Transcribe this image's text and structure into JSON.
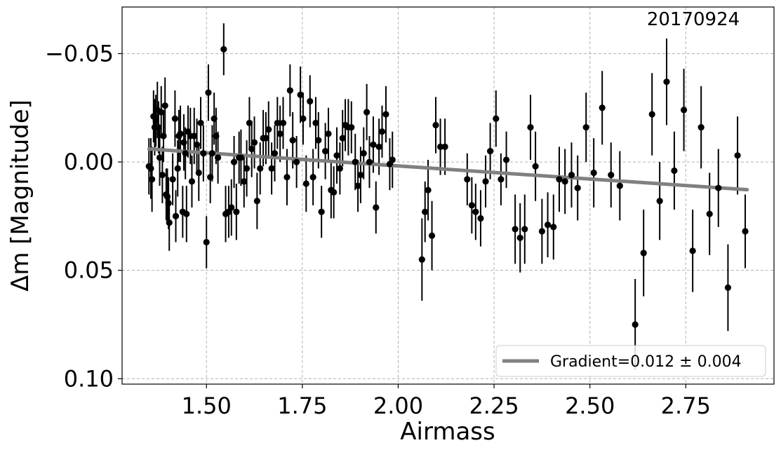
{
  "chart_data": {
    "type": "scatter",
    "annotation": "20170924",
    "xlabel": "Airmass",
    "ylabel": "Δm [Magnitude]",
    "xlim": [
      1.28,
      2.98
    ],
    "ylim": [
      0.1025,
      -0.0715
    ],
    "y_inverted": true,
    "grid": true,
    "legend_placement": "lower-right",
    "xticks": [
      {
        "value": 1.5,
        "label": "1.50"
      },
      {
        "value": 1.75,
        "label": "1.75"
      },
      {
        "value": 2.0,
        "label": "2.00"
      },
      {
        "value": 2.25,
        "label": "2.25"
      },
      {
        "value": 2.5,
        "label": "2.50"
      },
      {
        "value": 2.75,
        "label": "2.75"
      }
    ],
    "yticks": [
      {
        "value": -0.05,
        "label": "−0.05"
      },
      {
        "value": 0.0,
        "label": "0.00"
      },
      {
        "value": 0.05,
        "label": "0.05"
      },
      {
        "value": 0.1,
        "label": "0.10"
      }
    ],
    "colors": {
      "points": "#000000",
      "fit": "#808080",
      "grid": "#b0b0b0"
    },
    "fit": {
      "label": "Gradient=0.012 ± 0.004",
      "x": [
        1.35,
        2.91
      ],
      "y": [
        -0.006,
        0.0128
      ]
    },
    "points": [
      {
        "x": 1.35,
        "y": 0.002,
        "e": 0.013
      },
      {
        "x": 1.355,
        "y": 0.003,
        "e": 0.014
      },
      {
        "x": 1.358,
        "y": 0.008,
        "e": 0.015
      },
      {
        "x": 1.362,
        "y": -0.021,
        "e": 0.012
      },
      {
        "x": 1.365,
        "y": -0.016,
        "e": 0.013
      },
      {
        "x": 1.368,
        "y": -0.019,
        "e": 0.012
      },
      {
        "x": 1.372,
        "y": -0.024,
        "e": 0.013
      },
      {
        "x": 1.375,
        "y": -0.016,
        "e": 0.012
      },
      {
        "x": 1.378,
        "y": -0.002,
        "e": 0.013
      },
      {
        "x": 1.382,
        "y": -0.023,
        "e": 0.012
      },
      {
        "x": 1.385,
        "y": 0.006,
        "e": 0.013
      },
      {
        "x": 1.388,
        "y": -0.012,
        "e": 0.012
      },
      {
        "x": 1.392,
        "y": -0.026,
        "e": 0.013
      },
      {
        "x": 1.395,
        "y": 0.015,
        "e": 0.012
      },
      {
        "x": 1.398,
        "y": 0.016,
        "e": 0.013
      },
      {
        "x": 1.401,
        "y": 0.019,
        "e": 0.012
      },
      {
        "x": 1.403,
        "y": 0.028,
        "e": 0.013
      },
      {
        "x": 1.412,
        "y": 0.008,
        "e": 0.012
      },
      {
        "x": 1.418,
        "y": -0.02,
        "e": 0.013
      },
      {
        "x": 1.42,
        "y": 0.025,
        "e": 0.012
      },
      {
        "x": 1.425,
        "y": 0.003,
        "e": 0.013
      },
      {
        "x": 1.428,
        "y": -0.012,
        "e": 0.012
      },
      {
        "x": 1.432,
        "y": -0.013,
        "e": 0.013
      },
      {
        "x": 1.438,
        "y": 0.023,
        "e": 0.012
      },
      {
        "x": 1.441,
        "y": -0.009,
        "e": 0.013
      },
      {
        "x": 1.445,
        "y": -0.004,
        "e": 0.012
      },
      {
        "x": 1.448,
        "y": 0.024,
        "e": 0.013
      },
      {
        "x": 1.452,
        "y": -0.014,
        "e": 0.012
      },
      {
        "x": 1.458,
        "y": -0.012,
        "e": 0.013
      },
      {
        "x": 1.462,
        "y": 0.009,
        "e": 0.012
      },
      {
        "x": 1.468,
        "y": -0.012,
        "e": 0.013
      },
      {
        "x": 1.475,
        "y": -0.008,
        "e": 0.012
      },
      {
        "x": 1.48,
        "y": 0.005,
        "e": 0.013
      },
      {
        "x": 1.485,
        "y": -0.018,
        "e": 0.012
      },
      {
        "x": 1.492,
        "y": -0.004,
        "e": 0.013
      },
      {
        "x": 1.5,
        "y": 0.037,
        "e": 0.012
      },
      {
        "x": 1.505,
        "y": -0.032,
        "e": 0.013
      },
      {
        "x": 1.51,
        "y": 0.007,
        "e": 0.012
      },
      {
        "x": 1.515,
        "y": -0.004,
        "e": 0.013
      },
      {
        "x": 1.52,
        "y": -0.02,
        "e": 0.012
      },
      {
        "x": 1.525,
        "y": -0.012,
        "e": 0.013
      },
      {
        "x": 1.53,
        "y": -0.002,
        "e": 0.012
      },
      {
        "x": 1.545,
        "y": -0.052,
        "e": 0.012
      },
      {
        "x": 1.55,
        "y": 0.024,
        "e": 0.013
      },
      {
        "x": 1.558,
        "y": 0.023,
        "e": 0.012
      },
      {
        "x": 1.565,
        "y": 0.021,
        "e": 0.013
      },
      {
        "x": 1.572,
        "y": 0.0,
        "e": 0.012
      },
      {
        "x": 1.578,
        "y": 0.023,
        "e": 0.013
      },
      {
        "x": 1.585,
        "y": -0.002,
        "e": 0.012
      },
      {
        "x": 1.59,
        "y": -0.002,
        "e": 0.013
      },
      {
        "x": 1.598,
        "y": 0.009,
        "e": 0.012
      },
      {
        "x": 1.605,
        "y": 0.003,
        "e": 0.013
      },
      {
        "x": 1.612,
        "y": -0.018,
        "e": 0.012
      },
      {
        "x": 1.618,
        "y": -0.006,
        "e": 0.013
      },
      {
        "x": 1.625,
        "y": -0.009,
        "e": 0.012
      },
      {
        "x": 1.632,
        "y": 0.018,
        "e": 0.013
      },
      {
        "x": 1.64,
        "y": 0.003,
        "e": 0.012
      },
      {
        "x": 1.648,
        "y": -0.011,
        "e": 0.013
      },
      {
        "x": 1.655,
        "y": -0.011,
        "e": 0.012
      },
      {
        "x": 1.662,
        "y": -0.015,
        "e": 0.013
      },
      {
        "x": 1.67,
        "y": 0.003,
        "e": 0.012
      },
      {
        "x": 1.678,
        "y": -0.004,
        "e": 0.013
      },
      {
        "x": 1.685,
        "y": -0.018,
        "e": 0.012
      },
      {
        "x": 1.692,
        "y": -0.013,
        "e": 0.013
      },
      {
        "x": 1.7,
        "y": -0.018,
        "e": 0.012
      },
      {
        "x": 1.71,
        "y": 0.007,
        "e": 0.013
      },
      {
        "x": 1.718,
        "y": -0.033,
        "e": 0.012
      },
      {
        "x": 1.725,
        "y": -0.01,
        "e": 0.013
      },
      {
        "x": 1.735,
        "y": 0.0,
        "e": 0.012
      },
      {
        "x": 1.745,
        "y": -0.031,
        "e": 0.013
      },
      {
        "x": 1.752,
        "y": -0.02,
        "e": 0.012
      },
      {
        "x": 1.76,
        "y": 0.01,
        "e": 0.013
      },
      {
        "x": 1.77,
        "y": -0.028,
        "e": 0.012
      },
      {
        "x": 1.778,
        "y": 0.007,
        "e": 0.013
      },
      {
        "x": 1.785,
        "y": -0.018,
        "e": 0.012
      },
      {
        "x": 1.792,
        "y": -0.01,
        "e": 0.013
      },
      {
        "x": 1.8,
        "y": 0.023,
        "e": 0.012
      },
      {
        "x": 1.81,
        "y": -0.005,
        "e": 0.013
      },
      {
        "x": 1.818,
        "y": -0.013,
        "e": 0.012
      },
      {
        "x": 1.825,
        "y": 0.013,
        "e": 0.013
      },
      {
        "x": 1.832,
        "y": 0.014,
        "e": 0.012
      },
      {
        "x": 1.84,
        "y": -0.003,
        "e": 0.013
      },
      {
        "x": 1.848,
        "y": 0.003,
        "e": 0.012
      },
      {
        "x": 1.855,
        "y": -0.011,
        "e": 0.013
      },
      {
        "x": 1.862,
        "y": -0.017,
        "e": 0.012
      },
      {
        "x": 1.87,
        "y": -0.016,
        "e": 0.013
      },
      {
        "x": 1.878,
        "y": -0.016,
        "e": 0.012
      },
      {
        "x": 1.888,
        "y": 0.0,
        "e": 0.013
      },
      {
        "x": 1.895,
        "y": 0.011,
        "e": 0.012
      },
      {
        "x": 1.902,
        "y": 0.006,
        "e": 0.013
      },
      {
        "x": 1.91,
        "y": -0.004,
        "e": 0.012
      },
      {
        "x": 1.918,
        "y": -0.023,
        "e": 0.013
      },
      {
        "x": 1.925,
        "y": 0.0,
        "e": 0.012
      },
      {
        "x": 1.935,
        "y": -0.008,
        "e": 0.013
      },
      {
        "x": 1.942,
        "y": 0.021,
        "e": 0.012
      },
      {
        "x": 1.95,
        "y": -0.007,
        "e": 0.013
      },
      {
        "x": 1.958,
        "y": -0.014,
        "e": 0.012
      },
      {
        "x": 1.968,
        "y": -0.022,
        "e": 0.013
      },
      {
        "x": 1.978,
        "y": 0.001,
        "e": 0.012
      },
      {
        "x": 1.985,
        "y": -0.001,
        "e": 0.013
      },
      {
        "x": 2.062,
        "y": 0.045,
        "e": 0.019
      },
      {
        "x": 2.07,
        "y": 0.023,
        "e": 0.014
      },
      {
        "x": 2.078,
        "y": 0.013,
        "e": 0.014
      },
      {
        "x": 2.088,
        "y": 0.034,
        "e": 0.016
      },
      {
        "x": 2.098,
        "y": -0.017,
        "e": 0.013
      },
      {
        "x": 2.11,
        "y": -0.007,
        "e": 0.013
      },
      {
        "x": 2.122,
        "y": -0.007,
        "e": 0.013
      },
      {
        "x": 2.18,
        "y": 0.008,
        "e": 0.012
      },
      {
        "x": 2.192,
        "y": 0.02,
        "e": 0.013
      },
      {
        "x": 2.202,
        "y": 0.023,
        "e": 0.013
      },
      {
        "x": 2.215,
        "y": 0.026,
        "e": 0.013
      },
      {
        "x": 2.228,
        "y": 0.009,
        "e": 0.012
      },
      {
        "x": 2.24,
        "y": -0.005,
        "e": 0.013
      },
      {
        "x": 2.255,
        "y": -0.02,
        "e": 0.013
      },
      {
        "x": 2.268,
        "y": 0.008,
        "e": 0.012
      },
      {
        "x": 2.282,
        "y": -0.001,
        "e": 0.013
      },
      {
        "x": 2.305,
        "y": 0.031,
        "e": 0.016
      },
      {
        "x": 2.318,
        "y": 0.035,
        "e": 0.016
      },
      {
        "x": 2.33,
        "y": 0.031,
        "e": 0.016
      },
      {
        "x": 2.345,
        "y": -0.016,
        "e": 0.015
      },
      {
        "x": 2.358,
        "y": 0.002,
        "e": 0.016
      },
      {
        "x": 2.375,
        "y": 0.032,
        "e": 0.015
      },
      {
        "x": 2.39,
        "y": 0.029,
        "e": 0.015
      },
      {
        "x": 2.405,
        "y": 0.03,
        "e": 0.015
      },
      {
        "x": 2.42,
        "y": 0.008,
        "e": 0.015
      },
      {
        "x": 2.435,
        "y": 0.009,
        "e": 0.015
      },
      {
        "x": 2.452,
        "y": 0.006,
        "e": 0.015
      },
      {
        "x": 2.468,
        "y": 0.012,
        "e": 0.015
      },
      {
        "x": 2.49,
        "y": -0.016,
        "e": 0.016
      },
      {
        "x": 2.51,
        "y": 0.005,
        "e": 0.016
      },
      {
        "x": 2.532,
        "y": -0.025,
        "e": 0.017
      },
      {
        "x": 2.555,
        "y": 0.006,
        "e": 0.015
      },
      {
        "x": 2.578,
        "y": 0.011,
        "e": 0.016
      },
      {
        "x": 2.618,
        "y": 0.075,
        "e": 0.021
      },
      {
        "x": 2.64,
        "y": 0.042,
        "e": 0.02
      },
      {
        "x": 2.662,
        "y": -0.022,
        "e": 0.019
      },
      {
        "x": 2.682,
        "y": 0.018,
        "e": 0.018
      },
      {
        "x": 2.7,
        "y": -0.037,
        "e": 0.02
      },
      {
        "x": 2.72,
        "y": 0.004,
        "e": 0.018
      },
      {
        "x": 2.745,
        "y": -0.024,
        "e": 0.019
      },
      {
        "x": 2.768,
        "y": 0.041,
        "e": 0.019
      },
      {
        "x": 2.79,
        "y": -0.016,
        "e": 0.019
      },
      {
        "x": 2.812,
        "y": 0.024,
        "e": 0.019
      },
      {
        "x": 2.835,
        "y": 0.012,
        "e": 0.018
      },
      {
        "x": 2.86,
        "y": 0.058,
        "e": 0.02
      },
      {
        "x": 2.885,
        "y": -0.003,
        "e": 0.018
      },
      {
        "x": 2.905,
        "y": 0.032,
        "e": 0.017
      }
    ]
  }
}
